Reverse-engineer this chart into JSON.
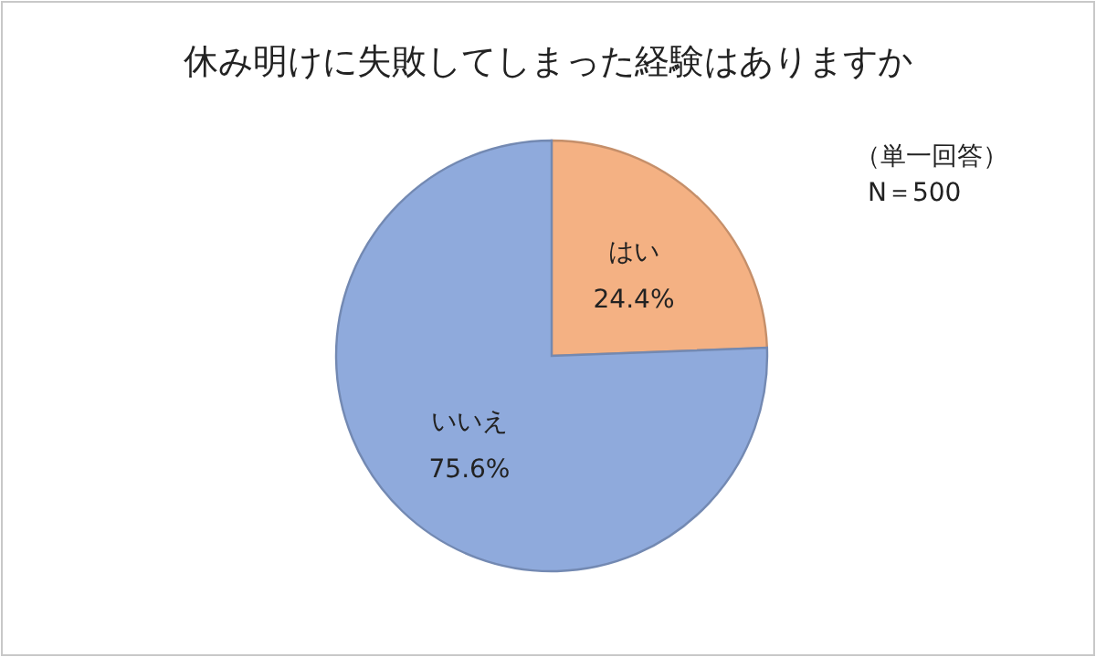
{
  "chart_data": {
    "type": "pie",
    "title": "休み明けに失敗してしまった経験はありますか",
    "categories": [
      "はい",
      "いいえ"
    ],
    "values": [
      24.4,
      75.6
    ],
    "colors": [
      "#f4b183",
      "#8faadc"
    ],
    "value_labels": [
      "24.4%",
      "75.6%"
    ],
    "annotations": [
      "（単一回答）",
      "N＝500"
    ]
  }
}
